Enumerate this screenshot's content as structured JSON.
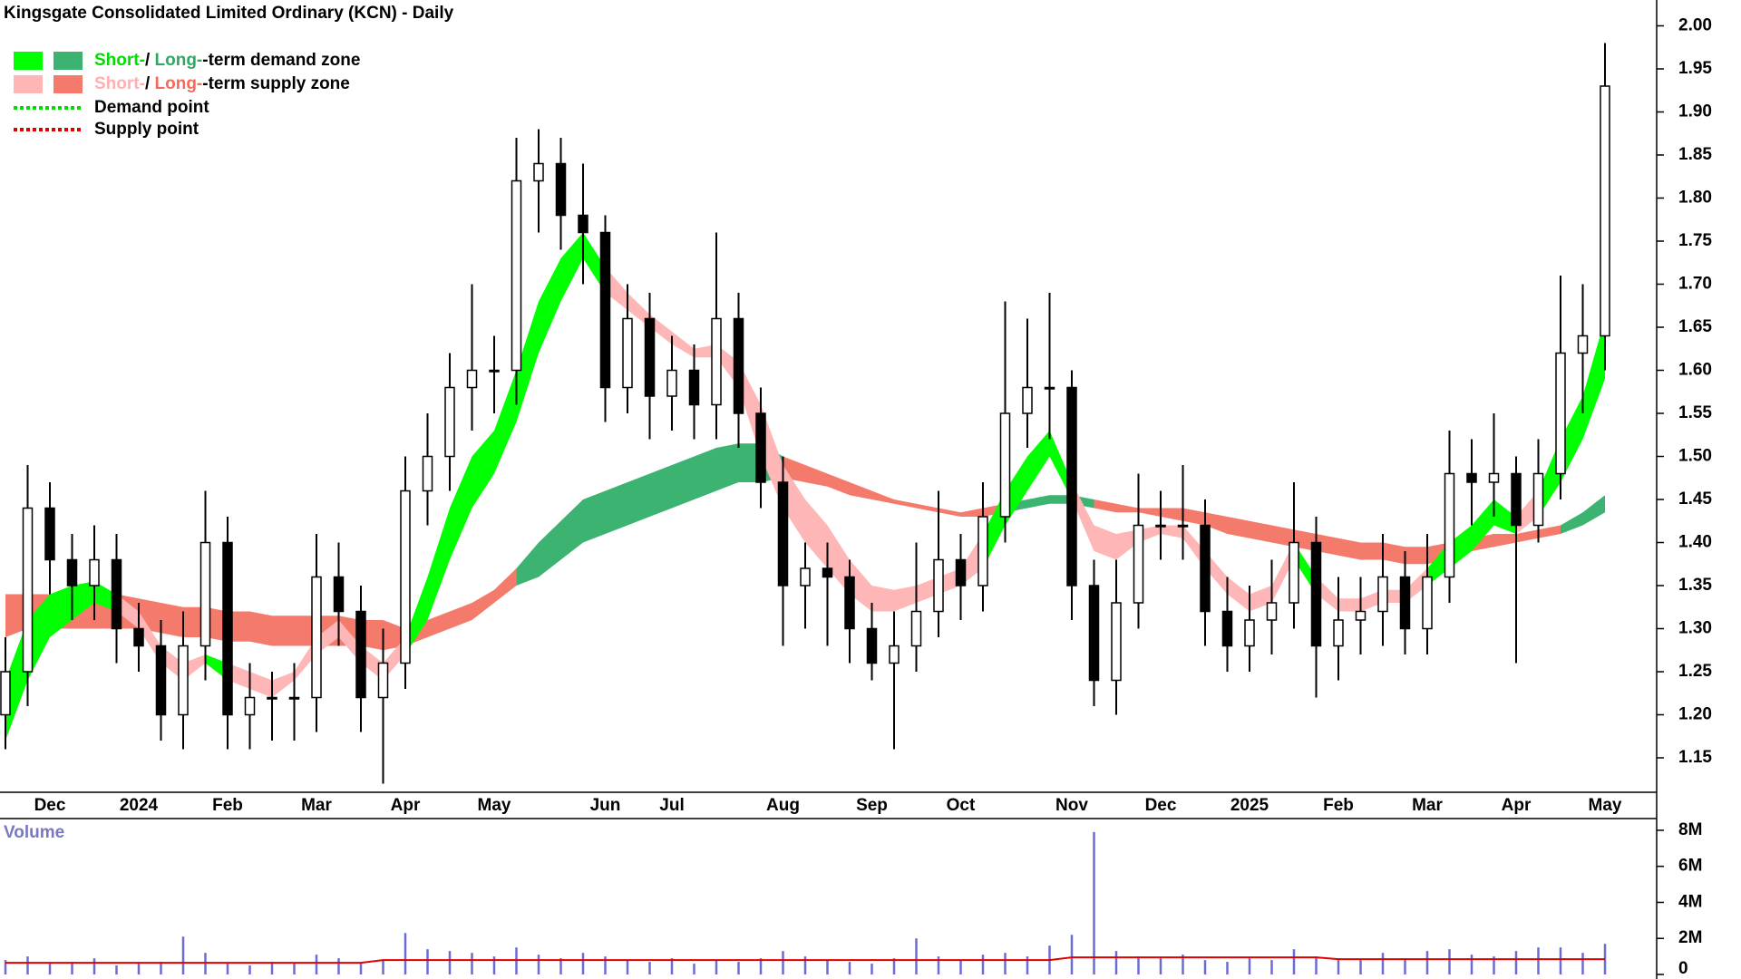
{
  "chart_data": [
    {
      "type": "candlestick",
      "title": "Kingsgate Consolidated Limited Ordinary (KCN) - Daily",
      "legend": [
        {
          "texts": [
            "Short-",
            "/ ",
            "Long-",
            "-term demand zone"
          ],
          "text_colors": [
            "#00dd00",
            "#000000",
            "#2fa866",
            "#000000"
          ],
          "swatches": [
            "#00ff00",
            "#3cb371"
          ]
        },
        {
          "texts": [
            "Short-",
            "/ ",
            "Long-",
            "-term supply zone"
          ],
          "text_colors": [
            "#ffb0b0",
            "#000000",
            "#f46b5a",
            "#000000"
          ],
          "swatches": [
            "#ffb6b6",
            "#f47b6b"
          ]
        },
        {
          "texts": [
            "Demand point"
          ],
          "line_color": "#00dd00"
        },
        {
          "texts": [
            "Supply point"
          ],
          "line_color": "#e00000"
        }
      ],
      "categories": [
        null,
        null,
        "Dec",
        null,
        null,
        null,
        "2024",
        null,
        null,
        null,
        "Feb",
        null,
        null,
        null,
        "Mar",
        null,
        null,
        null,
        "Apr",
        null,
        null,
        null,
        "May",
        null,
        null,
        null,
        null,
        "Jun",
        null,
        null,
        "Jul",
        null,
        null,
        null,
        null,
        "Aug",
        null,
        null,
        null,
        "Sep",
        null,
        null,
        null,
        "Oct",
        null,
        null,
        null,
        null,
        "Nov",
        null,
        null,
        null,
        "Dec",
        null,
        null,
        null,
        "2025",
        null,
        null,
        null,
        "Feb",
        null,
        null,
        null,
        "Mar",
        null,
        null,
        null,
        "Apr",
        null,
        null,
        null,
        "May"
      ],
      "open": [
        1.2,
        1.25,
        1.44,
        1.38,
        1.35,
        1.38,
        1.3,
        1.28,
        1.2,
        1.28,
        1.4,
        1.2,
        1.22,
        1.22,
        1.22,
        1.36,
        1.32,
        1.22,
        1.26,
        1.46,
        1.5,
        1.58,
        1.6,
        1.6,
        1.82,
        1.84,
        1.78,
        1.76,
        1.58,
        1.66,
        1.57,
        1.6,
        1.56,
        1.66,
        1.55,
        1.47,
        1.35,
        1.37,
        1.36,
        1.3,
        1.26,
        1.28,
        1.32,
        1.38,
        1.35,
        1.43,
        1.55,
        1.58,
        1.58,
        1.35,
        1.24,
        1.33,
        1.42,
        1.42,
        1.42,
        1.32,
        1.28,
        1.31,
        1.33,
        1.4,
        1.28,
        1.31,
        1.32,
        1.36,
        1.3,
        1.36,
        1.48,
        1.47,
        1.48,
        1.42,
        1.48,
        1.62,
        1.64
      ],
      "high": [
        1.29,
        1.49,
        1.47,
        1.41,
        1.42,
        1.41,
        1.33,
        1.31,
        1.32,
        1.46,
        1.43,
        1.26,
        1.25,
        1.26,
        1.41,
        1.4,
        1.35,
        1.3,
        1.5,
        1.55,
        1.62,
        1.7,
        1.64,
        1.87,
        1.88,
        1.87,
        1.84,
        1.78,
        1.7,
        1.69,
        1.64,
        1.63,
        1.76,
        1.69,
        1.58,
        1.5,
        1.4,
        1.4,
        1.38,
        1.33,
        1.32,
        1.4,
        1.46,
        1.41,
        1.47,
        1.68,
        1.66,
        1.69,
        1.6,
        1.38,
        1.38,
        1.48,
        1.46,
        1.49,
        1.45,
        1.36,
        1.35,
        1.38,
        1.47,
        1.43,
        1.36,
        1.36,
        1.41,
        1.39,
        1.41,
        1.53,
        1.52,
        1.55,
        1.5,
        1.52,
        1.71,
        1.7,
        1.98
      ],
      "low": [
        1.16,
        1.21,
        1.34,
        1.31,
        1.31,
        1.26,
        1.25,
        1.17,
        1.16,
        1.24,
        1.16,
        1.16,
        1.17,
        1.17,
        1.18,
        1.28,
        1.18,
        1.12,
        1.23,
        1.42,
        1.46,
        1.53,
        1.55,
        1.56,
        1.76,
        1.74,
        1.7,
        1.54,
        1.55,
        1.52,
        1.53,
        1.52,
        1.52,
        1.51,
        1.44,
        1.28,
        1.3,
        1.28,
        1.26,
        1.24,
        1.16,
        1.25,
        1.29,
        1.31,
        1.32,
        1.4,
        1.51,
        1.52,
        1.31,
        1.21,
        1.2,
        1.3,
        1.38,
        1.38,
        1.28,
        1.25,
        1.25,
        1.27,
        1.3,
        1.22,
        1.24,
        1.27,
        1.28,
        1.27,
        1.27,
        1.33,
        1.42,
        1.43,
        1.26,
        1.4,
        1.45,
        1.55,
        1.6
      ],
      "close": [
        1.25,
        1.44,
        1.38,
        1.35,
        1.38,
        1.3,
        1.28,
        1.2,
        1.28,
        1.4,
        1.2,
        1.22,
        1.22,
        1.22,
        1.36,
        1.32,
        1.22,
        1.26,
        1.46,
        1.5,
        1.58,
        1.6,
        1.6,
        1.82,
        1.84,
        1.78,
        1.76,
        1.58,
        1.66,
        1.57,
        1.6,
        1.56,
        1.66,
        1.55,
        1.47,
        1.35,
        1.37,
        1.36,
        1.3,
        1.26,
        1.28,
        1.32,
        1.38,
        1.35,
        1.43,
        1.55,
        1.58,
        1.58,
        1.35,
        1.24,
        1.33,
        1.42,
        1.42,
        1.42,
        1.32,
        1.28,
        1.31,
        1.33,
        1.4,
        1.28,
        1.31,
        1.32,
        1.36,
        1.3,
        1.36,
        1.48,
        1.47,
        1.48,
        1.42,
        1.48,
        1.62,
        1.64,
        1.93
      ],
      "bands": [
        {
          "upper": [
            1.34,
            1.34,
            1.34,
            1.34,
            1.34,
            1.34,
            1.335,
            1.33,
            1.325,
            1.325,
            1.32,
            1.32,
            1.315,
            1.315,
            1.315,
            1.315,
            1.31,
            1.31,
            1.3,
            1.31,
            1.32,
            1.33,
            1.345,
            1.37,
            1.4,
            1.425,
            1.45,
            1.46,
            1.47,
            1.48,
            1.49,
            1.5,
            1.51,
            1.515,
            1.515,
            1.5,
            1.49,
            1.48,
            1.47,
            1.46,
            1.45,
            1.445,
            1.44,
            1.435,
            1.44,
            1.445,
            1.45,
            1.455,
            1.455,
            1.45,
            1.445,
            1.44,
            1.44,
            1.44,
            1.435,
            1.43,
            1.425,
            1.42,
            1.415,
            1.41,
            1.405,
            1.4,
            1.4,
            1.395,
            1.395,
            1.4,
            1.405,
            1.41,
            1.41,
            1.415,
            1.42,
            1.435,
            1.455
          ],
          "lower": [
            1.29,
            1.3,
            1.3,
            1.3,
            1.3,
            1.3,
            1.3,
            1.295,
            1.29,
            1.29,
            1.285,
            1.285,
            1.28,
            1.28,
            1.28,
            1.28,
            1.28,
            1.275,
            1.28,
            1.29,
            1.3,
            1.31,
            1.33,
            1.35,
            1.36,
            1.38,
            1.4,
            1.41,
            1.42,
            1.43,
            1.44,
            1.45,
            1.46,
            1.47,
            1.47,
            1.475,
            1.47,
            1.465,
            1.455,
            1.45,
            1.445,
            1.44,
            1.435,
            1.43,
            1.43,
            1.435,
            1.44,
            1.445,
            1.445,
            1.44,
            1.435,
            1.435,
            1.43,
            1.425,
            1.42,
            1.41,
            1.405,
            1.4,
            1.395,
            1.39,
            1.385,
            1.38,
            1.38,
            1.375,
            1.375,
            1.38,
            1.39,
            1.395,
            1.4,
            1.405,
            1.41,
            1.42,
            1.435
          ],
          "demand": [
            false,
            false,
            false,
            false,
            false,
            false,
            false,
            false,
            false,
            false,
            false,
            false,
            false,
            false,
            false,
            false,
            false,
            false,
            false,
            false,
            false,
            false,
            false,
            true,
            true,
            true,
            true,
            true,
            true,
            true,
            true,
            true,
            true,
            true,
            true,
            false,
            false,
            false,
            false,
            false,
            false,
            false,
            false,
            false,
            false,
            true,
            true,
            true,
            true,
            false,
            false,
            false,
            false,
            false,
            false,
            false,
            false,
            false,
            false,
            false,
            false,
            false,
            false,
            false,
            false,
            false,
            false,
            false,
            false,
            false,
            true,
            true,
            true
          ],
          "demand_color": "#3cb371",
          "supply_color": "#f47b6b"
        },
        {
          "upper": [
            1.24,
            1.31,
            1.34,
            1.35,
            1.355,
            1.34,
            1.32,
            1.28,
            1.26,
            1.27,
            1.26,
            1.25,
            1.24,
            1.25,
            1.29,
            1.31,
            1.28,
            1.26,
            1.29,
            1.36,
            1.44,
            1.5,
            1.53,
            1.6,
            1.68,
            1.73,
            1.76,
            1.72,
            1.69,
            1.665,
            1.645,
            1.625,
            1.63,
            1.61,
            1.56,
            1.49,
            1.45,
            1.42,
            1.38,
            1.35,
            1.345,
            1.35,
            1.36,
            1.37,
            1.41,
            1.46,
            1.5,
            1.53,
            1.47,
            1.42,
            1.41,
            1.415,
            1.42,
            1.42,
            1.39,
            1.36,
            1.34,
            1.35,
            1.4,
            1.36,
            1.335,
            1.335,
            1.345,
            1.345,
            1.37,
            1.4,
            1.42,
            1.45,
            1.43,
            1.46,
            1.52,
            1.57,
            1.66
          ],
          "lower": [
            1.17,
            1.24,
            1.29,
            1.31,
            1.33,
            1.32,
            1.3,
            1.26,
            1.24,
            1.26,
            1.24,
            1.23,
            1.22,
            1.24,
            1.27,
            1.29,
            1.26,
            1.24,
            1.27,
            1.31,
            1.38,
            1.44,
            1.48,
            1.54,
            1.62,
            1.68,
            1.73,
            1.69,
            1.67,
            1.65,
            1.63,
            1.615,
            1.615,
            1.58,
            1.5,
            1.44,
            1.4,
            1.37,
            1.34,
            1.32,
            1.32,
            1.33,
            1.34,
            1.35,
            1.37,
            1.42,
            1.46,
            1.5,
            1.45,
            1.39,
            1.38,
            1.4,
            1.41,
            1.405,
            1.37,
            1.34,
            1.32,
            1.33,
            1.38,
            1.34,
            1.32,
            1.32,
            1.33,
            1.33,
            1.35,
            1.37,
            1.39,
            1.42,
            1.41,
            1.43,
            1.47,
            1.52,
            1.59
          ],
          "demand": [
            true,
            true,
            true,
            true,
            true,
            false,
            false,
            false,
            false,
            true,
            false,
            false,
            false,
            false,
            false,
            false,
            false,
            false,
            true,
            true,
            true,
            true,
            true,
            true,
            true,
            true,
            true,
            false,
            false,
            false,
            false,
            false,
            false,
            false,
            false,
            false,
            false,
            false,
            false,
            false,
            false,
            false,
            false,
            false,
            true,
            true,
            true,
            true,
            false,
            false,
            false,
            false,
            false,
            false,
            false,
            false,
            false,
            false,
            true,
            false,
            false,
            false,
            false,
            false,
            true,
            true,
            true,
            true,
            false,
            true,
            true,
            true,
            true
          ],
          "demand_color": "#00ff00",
          "supply_color": "#ffb6b6"
        }
      ],
      "ylim": [
        1.11,
        2.03
      ],
      "yticks": [
        {
          "value": 2.0,
          "label": "2.00"
        },
        1.95,
        {
          "value": 1.9,
          "label": "1.90"
        },
        1.85,
        {
          "value": 1.8,
          "label": "1.80"
        },
        1.75,
        {
          "value": 1.7,
          "label": "1.70"
        },
        1.65,
        {
          "value": 1.6,
          "label": "1.60"
        },
        1.55,
        {
          "value": 1.5,
          "label": "1.50"
        },
        1.45,
        {
          "value": 1.4,
          "label": "1.40"
        },
        1.35,
        {
          "value": 1.3,
          "label": "1.30"
        },
        1.25,
        {
          "value": 1.2,
          "label": "1.20"
        },
        1.15
      ]
    },
    {
      "type": "bar",
      "title": "Volume",
      "color": "#6b6bd6",
      "values": [
        800000,
        1000000,
        600000,
        700000,
        900000,
        500000,
        600000,
        700000,
        2100000,
        1200000,
        600000,
        500000,
        700000,
        600000,
        1100000,
        900000,
        600000,
        800000,
        2300000,
        1400000,
        1300000,
        1200000,
        1000000,
        1500000,
        1100000,
        900000,
        1200000,
        1000000,
        800000,
        700000,
        900000,
        600000,
        800000,
        700000,
        900000,
        1300000,
        1000000,
        800000,
        700000,
        600000,
        900000,
        2000000,
        1000000,
        800000,
        1100000,
        1200000,
        1000000,
        1600000,
        2200000,
        7900000,
        1300000,
        1000000,
        900000,
        1100000,
        800000,
        700000,
        900000,
        800000,
        1400000,
        1000000,
        900000,
        800000,
        1200000,
        900000,
        1300000,
        1400000,
        1100000,
        1000000,
        1300000,
        1500000,
        1500000,
        1200000,
        1700000
      ],
      "moving_average": [
        650000,
        650000,
        650000,
        650000,
        650000,
        650000,
        650000,
        650000,
        650000,
        650000,
        650000,
        650000,
        650000,
        650000,
        650000,
        650000,
        650000,
        800000,
        800000,
        800000,
        800000,
        800000,
        800000,
        800000,
        800000,
        800000,
        800000,
        800000,
        800000,
        800000,
        800000,
        800000,
        800000,
        800000,
        800000,
        800000,
        800000,
        800000,
        800000,
        800000,
        800000,
        800000,
        800000,
        800000,
        800000,
        800000,
        800000,
        800000,
        950000,
        950000,
        950000,
        950000,
        950000,
        950000,
        950000,
        950000,
        950000,
        950000,
        950000,
        950000,
        850000,
        850000,
        850000,
        850000,
        850000,
        850000,
        850000,
        850000,
        850000,
        850000,
        850000,
        850000,
        850000
      ],
      "average_color": "#e00000",
      "ylim": [
        0,
        8600000
      ],
      "yticks": [
        0,
        {
          "value": 2000000,
          "label": "2M"
        },
        {
          "value": 4000000,
          "label": "4M"
        },
        {
          "value": 6000000,
          "label": "6M"
        },
        {
          "value": 8000000,
          "label": "8M"
        }
      ]
    }
  ]
}
